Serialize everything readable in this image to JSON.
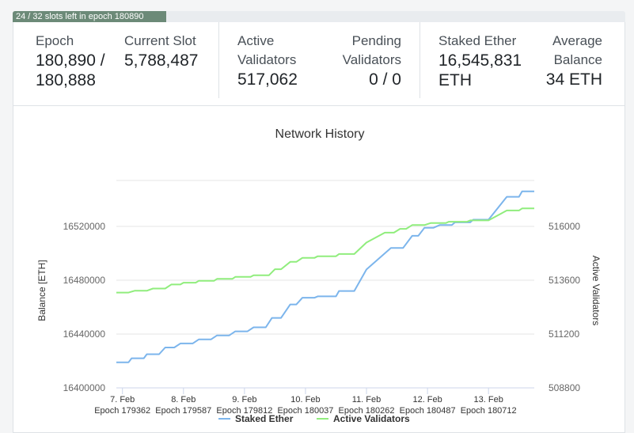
{
  "progress": {
    "label": "24 / 32 slots left in epoch 180890",
    "fraction": 0.25
  },
  "stats": {
    "epoch": {
      "label": "Epoch",
      "value_line1": "180,890 /",
      "value_line2": "180,888"
    },
    "current_slot": {
      "label": "Current Slot",
      "value": "5,788,487"
    },
    "active_validators": {
      "label_line1": "Active",
      "label_line2": "Validators",
      "value": "517,062"
    },
    "pending_validators": {
      "label_line1": "Pending",
      "label_line2": "Validators",
      "value": "0 / 0"
    },
    "staked_ether": {
      "label": "Staked Ether",
      "value_line1": "16,545,831",
      "value_line2": "ETH"
    },
    "average_balance": {
      "label_line1": "Average",
      "label_line2": "Balance",
      "value": "34 ETH"
    }
  },
  "chart_data": {
    "type": "line",
    "title": "Network History",
    "ylabel_left": "Balance [ETH]",
    "ylabel_right": "Active Validators",
    "x_range": [
      6.9,
      13.75
    ],
    "x_ticks": [
      {
        "x": 7,
        "line1": "7. Feb",
        "line2": "Epoch 179362"
      },
      {
        "x": 8,
        "line1": "8. Feb",
        "line2": "Epoch 179587"
      },
      {
        "x": 9,
        "line1": "9. Feb",
        "line2": "Epoch 179812"
      },
      {
        "x": 10,
        "line1": "10. Feb",
        "line2": "Epoch 180037"
      },
      {
        "x": 11,
        "line1": "11. Feb",
        "line2": "Epoch 180262"
      },
      {
        "x": 12,
        "line1": "12. Feb",
        "line2": "Epoch 180487"
      },
      {
        "x": 13,
        "line1": "13. Feb",
        "line2": "Epoch 180712"
      }
    ],
    "y_left": {
      "range": [
        16400000,
        16560000
      ],
      "ticks": [
        "16400000",
        "16440000",
        "16480000",
        "16520000"
      ]
    },
    "y_right": {
      "range": [
        508800,
        518400
      ],
      "ticks": [
        "508800",
        "511200",
        "513600",
        "516000"
      ]
    },
    "grid": true,
    "legend_position": "bottom",
    "series": [
      {
        "name": "Staked Ether",
        "axis": "left",
        "color": "#7cb5ec",
        "points": [
          [
            6.9,
            16419000
          ],
          [
            7.1,
            16419000
          ],
          [
            7.15,
            16422000
          ],
          [
            7.35,
            16422000
          ],
          [
            7.4,
            16425000
          ],
          [
            7.6,
            16425000
          ],
          [
            7.7,
            16430000
          ],
          [
            7.85,
            16430000
          ],
          [
            7.95,
            16433000
          ],
          [
            8.15,
            16433000
          ],
          [
            8.25,
            16436000
          ],
          [
            8.45,
            16436000
          ],
          [
            8.55,
            16439000
          ],
          [
            8.75,
            16439000
          ],
          [
            8.85,
            16442000
          ],
          [
            9.05,
            16442000
          ],
          [
            9.15,
            16445000
          ],
          [
            9.35,
            16445000
          ],
          [
            9.45,
            16452000
          ],
          [
            9.6,
            16452000
          ],
          [
            9.75,
            16462000
          ],
          [
            9.85,
            16462000
          ],
          [
            9.95,
            16467000
          ],
          [
            10.15,
            16467000
          ],
          [
            10.2,
            16468000
          ],
          [
            10.5,
            16468000
          ],
          [
            10.55,
            16472000
          ],
          [
            10.8,
            16472000
          ],
          [
            11.0,
            16488000
          ],
          [
            11.4,
            16504000
          ],
          [
            11.6,
            16504000
          ],
          [
            11.75,
            16513000
          ],
          [
            11.85,
            16513000
          ],
          [
            11.95,
            16519000
          ],
          [
            12.1,
            16519000
          ],
          [
            12.2,
            16521000
          ],
          [
            12.4,
            16521000
          ],
          [
            12.45,
            16523000
          ],
          [
            12.7,
            16523000
          ],
          [
            12.75,
            16525000
          ],
          [
            13.0,
            16525000
          ],
          [
            13.3,
            16542000
          ],
          [
            13.5,
            16542000
          ],
          [
            13.55,
            16546000
          ],
          [
            13.75,
            16546000
          ]
        ]
      },
      {
        "name": "Active Validators",
        "axis": "right",
        "color": "#90ed7d",
        "points": [
          [
            6.9,
            513050
          ],
          [
            7.1,
            513050
          ],
          [
            7.2,
            513130
          ],
          [
            7.4,
            513130
          ],
          [
            7.5,
            513230
          ],
          [
            7.7,
            513230
          ],
          [
            7.8,
            513410
          ],
          [
            7.95,
            513410
          ],
          [
            8.0,
            513490
          ],
          [
            8.2,
            513490
          ],
          [
            8.25,
            513570
          ],
          [
            8.5,
            513570
          ],
          [
            8.55,
            513660
          ],
          [
            8.8,
            513660
          ],
          [
            8.85,
            513750
          ],
          [
            9.1,
            513750
          ],
          [
            9.15,
            513820
          ],
          [
            9.4,
            513820
          ],
          [
            9.5,
            514090
          ],
          [
            9.6,
            514090
          ],
          [
            9.75,
            514420
          ],
          [
            9.85,
            514420
          ],
          [
            9.95,
            514600
          ],
          [
            10.15,
            514600
          ],
          [
            10.2,
            514670
          ],
          [
            10.5,
            514670
          ],
          [
            10.55,
            514770
          ],
          [
            10.8,
            514770
          ],
          [
            11.0,
            515280
          ],
          [
            11.3,
            515720
          ],
          [
            11.45,
            515720
          ],
          [
            11.55,
            515890
          ],
          [
            11.65,
            515890
          ],
          [
            11.75,
            516060
          ],
          [
            11.95,
            516060
          ],
          [
            12.05,
            516150
          ],
          [
            12.3,
            516150
          ],
          [
            12.35,
            516210
          ],
          [
            12.65,
            516210
          ],
          [
            12.7,
            516270
          ],
          [
            13.0,
            516270
          ],
          [
            13.3,
            516710
          ],
          [
            13.5,
            516710
          ],
          [
            13.55,
            516800
          ],
          [
            13.75,
            516800
          ]
        ]
      }
    ]
  }
}
